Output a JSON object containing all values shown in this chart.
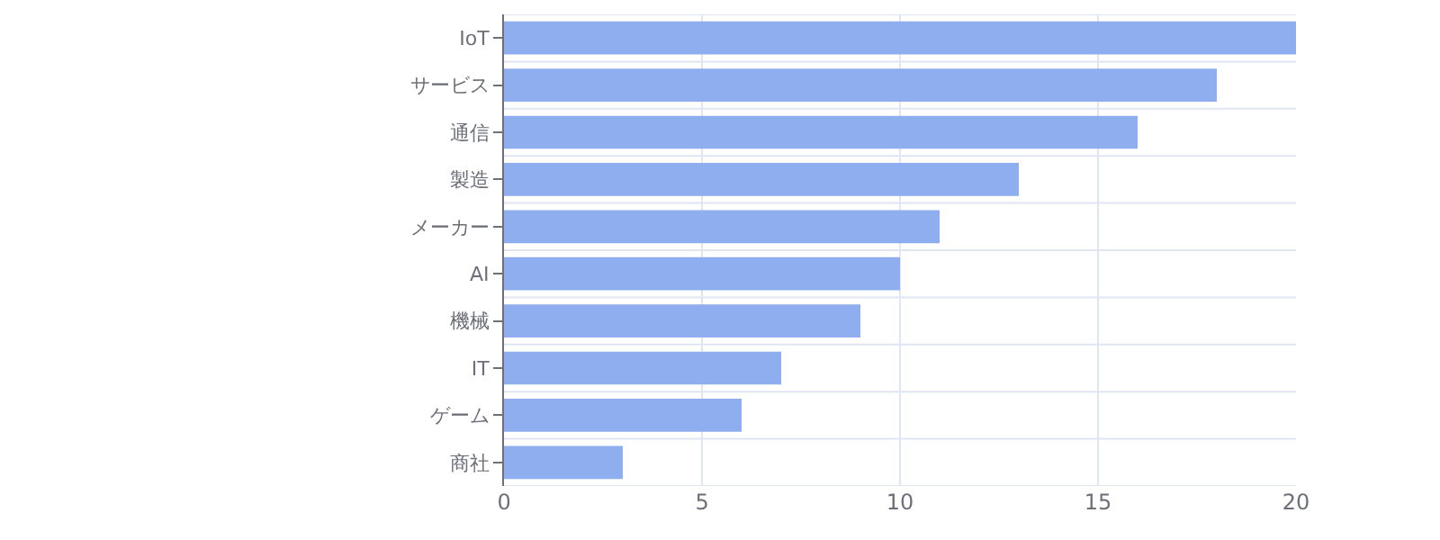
{
  "chart_data": {
    "type": "bar",
    "orientation": "horizontal",
    "categories": [
      "IoT",
      "サービス",
      "通信",
      "製造",
      "メーカー",
      "AI",
      "機械",
      "IT",
      "ゲーム",
      "商社"
    ],
    "values": [
      20,
      18,
      16,
      13,
      11,
      10,
      9,
      7,
      6,
      3
    ],
    "color": "#8eaef0",
    "xlim": [
      0,
      20
    ],
    "xticks": [
      0,
      5,
      10,
      15,
      20
    ],
    "grid": true
  }
}
